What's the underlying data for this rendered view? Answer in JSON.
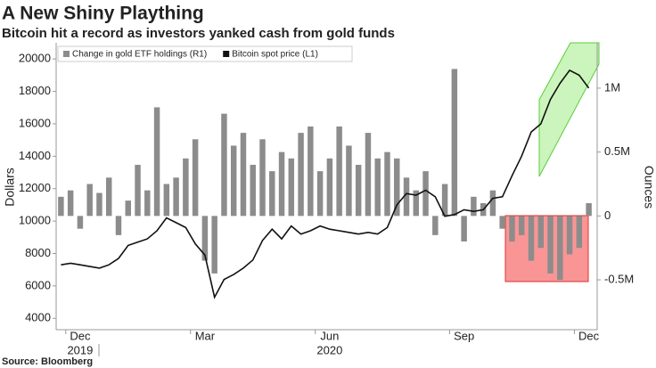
{
  "chart_data": {
    "type": "bar-line",
    "title": "A New Shiny Plaything",
    "subtitle": "Bitcoin hit a record as investors yanked cash from gold funds",
    "source": "Source: Bloomberg",
    "y_label": "Dollars",
    "y2_label": "Ounces",
    "x_year_labels": [
      "2019",
      "2020"
    ],
    "categories": [
      null,
      null,
      "Dec",
      null,
      null,
      null,
      null,
      null,
      null,
      null,
      null,
      null,
      null,
      null,
      null,
      "Mar",
      null,
      null,
      null,
      null,
      null,
      null,
      null,
      null,
      null,
      null,
      null,
      null,
      "Jun",
      null,
      null,
      null,
      null,
      null,
      null,
      null,
      null,
      null,
      null,
      null,
      null,
      null,
      "Sep",
      null,
      null,
      null,
      null,
      null,
      null,
      null,
      null,
      null,
      null,
      null,
      null,
      "Dec"
    ],
    "series": [
      {
        "name": "Change in gold ETF holdings (R1)",
        "color": "#8c8c8c",
        "axis": "y2",
        "kind": "bar",
        "values": [
          150000,
          200000,
          -100000,
          250000,
          180000,
          300000,
          -150000,
          120000,
          400000,
          200000,
          850000,
          250000,
          300000,
          450000,
          600000,
          -350000,
          -450000,
          800000,
          550000,
          650000,
          400000,
          600000,
          350000,
          500000,
          450000,
          650000,
          700000,
          350000,
          450000,
          700000,
          550000,
          400000,
          650000,
          450000,
          500000,
          450000,
          300000,
          200000,
          350000,
          -150000,
          250000,
          1150000,
          -200000,
          150000,
          100000,
          200000,
          -100000,
          -200000,
          -150000,
          -350000,
          -250000,
          -450000,
          -500000,
          -300000,
          -250000,
          100000
        ]
      },
      {
        "name": "Bitcoin spot price (L1)",
        "color": "#111111",
        "axis": "y",
        "kind": "line",
        "values": [
          7300,
          7400,
          7300,
          7200,
          7100,
          7300,
          7700,
          8500,
          8700,
          8900,
          9400,
          10200,
          9900,
          9600,
          8600,
          7900,
          5300,
          6400,
          6700,
          7100,
          7600,
          8800,
          9500,
          8900,
          9700,
          9200,
          9400,
          9700,
          9500,
          9400,
          9300,
          9200,
          9300,
          9200,
          9600,
          11000,
          11700,
          11600,
          11900,
          11500,
          10300,
          10400,
          10700,
          10600,
          10700,
          11400,
          11500,
          12800,
          14000,
          15500,
          16000,
          17500,
          18500,
          19300,
          19000,
          18200
        ]
      }
    ],
    "ylim": [
      3300,
      21000
    ],
    "yticks": [
      4000,
      6000,
      8000,
      10000,
      12000,
      14000,
      16000,
      18000,
      20000
    ],
    "y2lim": [
      -890000,
      1355000
    ],
    "y2ticks": [
      {
        "value": -500000,
        "label": "-0.5M"
      },
      0,
      {
        "value": 500000,
        "label": "0.5M"
      },
      {
        "value": 1000000,
        "label": "1M"
      }
    ]
  }
}
